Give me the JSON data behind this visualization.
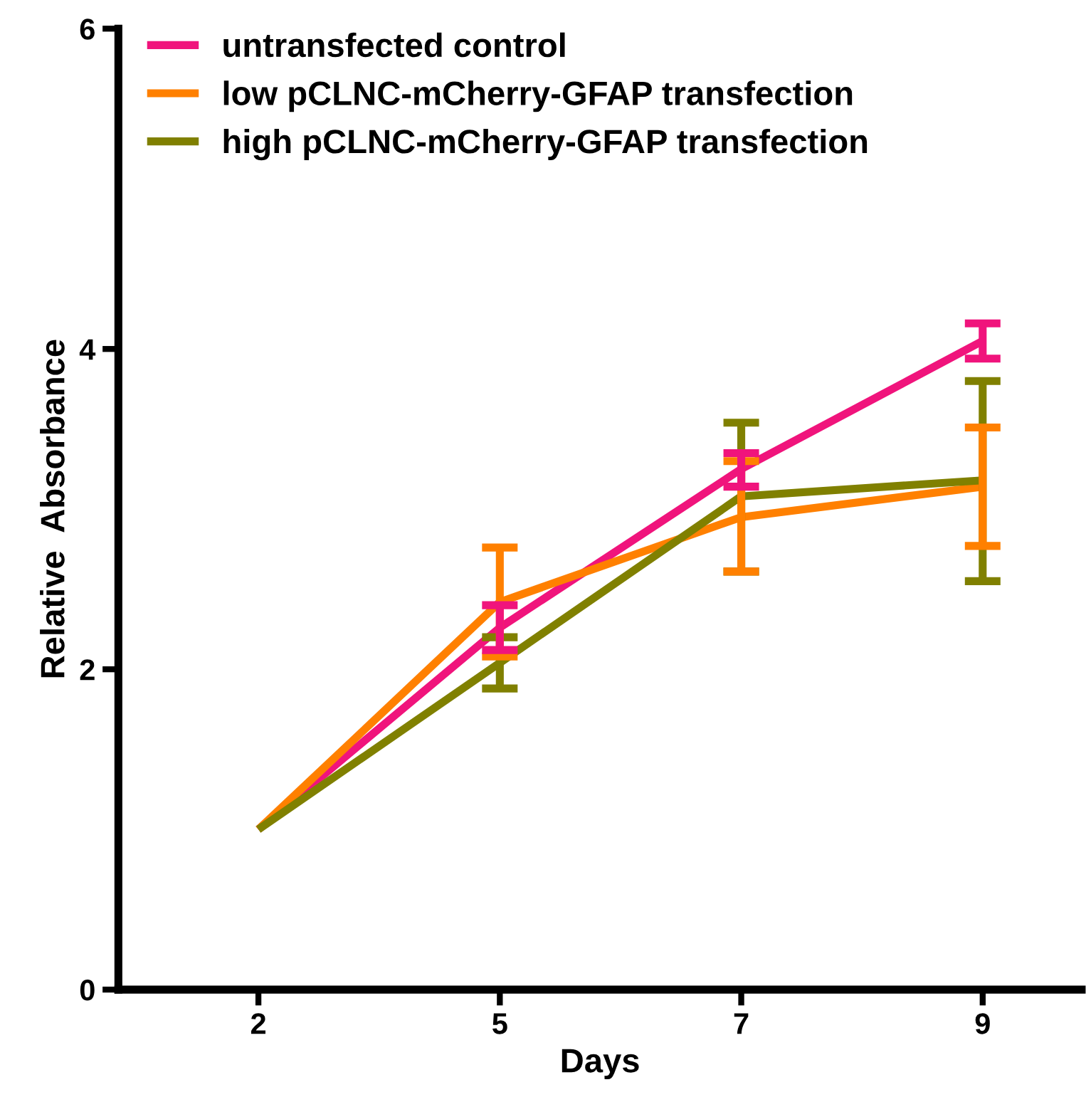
{
  "chart_data": {
    "type": "line",
    "xlabel": "Days",
    "ylabel": "Relative  Absorbance",
    "categories": [
      "2",
      "5",
      "7",
      "9"
    ],
    "ylim": [
      0,
      6
    ],
    "yticks": [
      0,
      2,
      4,
      6
    ],
    "grid": false,
    "legend": "top left",
    "marker": "none",
    "line_style": "solid",
    "series": [
      {
        "name": "untransfected control",
        "color": "#f0147c",
        "values": [
          1,
          2.26,
          3.25,
          4.05
        ],
        "errors": [
          null,
          [
            2.12,
            2.4
          ],
          [
            3.14,
            3.35
          ],
          [
            3.94,
            4.16
          ]
        ]
      },
      {
        "name": "low pCLNC-mCherry-GFAP transfection",
        "color": "#ff8000",
        "values": [
          1,
          2.42,
          2.95,
          3.14
        ],
        "errors": [
          null,
          [
            2.08,
            2.76
          ],
          [
            2.61,
            3.3
          ],
          [
            2.77,
            3.51
          ]
        ]
      },
      {
        "name": "high pCLNC-mCherry-GFAP transfection",
        "color": "#808000",
        "values": [
          1,
          2.04,
          3.08,
          3.18
        ],
        "errors": [
          null,
          [
            1.88,
            2.2
          ],
          [
            2.61,
            3.54
          ],
          [
            2.55,
            3.8
          ]
        ]
      }
    ]
  }
}
